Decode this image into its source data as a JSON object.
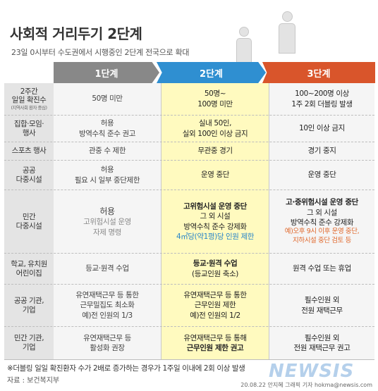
{
  "title": "사회적 거리두기 2단계",
  "subtitle": "23일 0시부터 수도권에서 시행중인 2단계 전국으로 확대",
  "headers": [
    "1단계",
    "2단계",
    "3단계"
  ],
  "rows": [
    {
      "label": [
        "2주간",
        "일일 확진수"
      ],
      "label_small": "(지역사회 환자 중심)",
      "c1": [
        "50명 미만"
      ],
      "c2": [
        "50명~",
        "100명 미만"
      ],
      "c3": [
        "100~200명 이상",
        "1주 2회 더블링 발생"
      ]
    },
    {
      "label": [
        "집합·모임·",
        "행사"
      ],
      "c1": [
        "허용",
        "방역수칙 준수 권고"
      ],
      "c2": [
        "실내 50인,",
        "실외 100인 이상 금지"
      ],
      "c3": [
        "10인 이상 금지"
      ]
    },
    {
      "label": [
        "스포츠 행사"
      ],
      "c1": [
        "관중 수 제한"
      ],
      "c2": [
        "무관중 경기"
      ],
      "c3": [
        "경기 중지"
      ]
    },
    {
      "label": [
        "공공",
        "다중시설"
      ],
      "c1": [
        "허용",
        "필요 시 일부 중단제한"
      ],
      "c2": [
        "운영 중단"
      ],
      "c3": [
        "운영 중단"
      ]
    },
    {
      "label": [
        "민간",
        "다중시설"
      ],
      "c1": [
        "허용",
        "고위험시설 운영",
        "자제 명령"
      ],
      "c2": [
        "고위험시설 운영 중단",
        "그 외 시설",
        "방역수칙 준수 강제화",
        "4㎡당(약1평)당 인원 제한"
      ],
      "c3": [
        "고·중위험시설 운영 중단",
        "그 외 시설",
        "방역수칙 준수 강제화",
        "예)오후 9시 이후 운영 중단,",
        "지하시설 중단 검토 등"
      ]
    },
    {
      "label": [
        "학교, 유치원",
        "어린이집"
      ],
      "c1": [
        "등교·원격 수업"
      ],
      "c2": [
        "등교·원격 수업",
        "(등교인원 축소)"
      ],
      "c3": [
        "원격 수업 또는 휴업"
      ]
    },
    {
      "label": [
        "공공 기관,",
        "기업"
      ],
      "c1": [
        "유연재택근무 등 통한",
        "근무밀집도 최소화",
        "예)전 인원의 1/3"
      ],
      "c2": [
        "유연재택근무 등 통한",
        "근무인원 제한",
        "예)전 인원의 1/2"
      ],
      "c3": [
        "필수인원 외",
        "전원 재택근무"
      ]
    },
    {
      "label": [
        "민간 기관,",
        "기업"
      ],
      "c1": [
        "유연재택근무 등",
        "활성화 권장"
      ],
      "c2": [
        "유연재택근무 등 통해",
        "근무인원 제한 권고"
      ],
      "c3": [
        "필수인원 외",
        "전원 재택근무 권고"
      ]
    }
  ],
  "footnote": "※더블링 일일 확진환자 수가 2배로 증가하는 경우가 1주일 이내에 2회 이상 발생",
  "source": "자료 : 보건복지부",
  "credit": "20.08.22 안지혜 그래픽 기자 hokma@newsis.com",
  "logo": "NEWSIS",
  "colors": {
    "stage1": "#888888",
    "stage2": "#2f8fd1",
    "stage3": "#d9552b",
    "red": "#d2232a",
    "highlight": "#fffabf"
  }
}
